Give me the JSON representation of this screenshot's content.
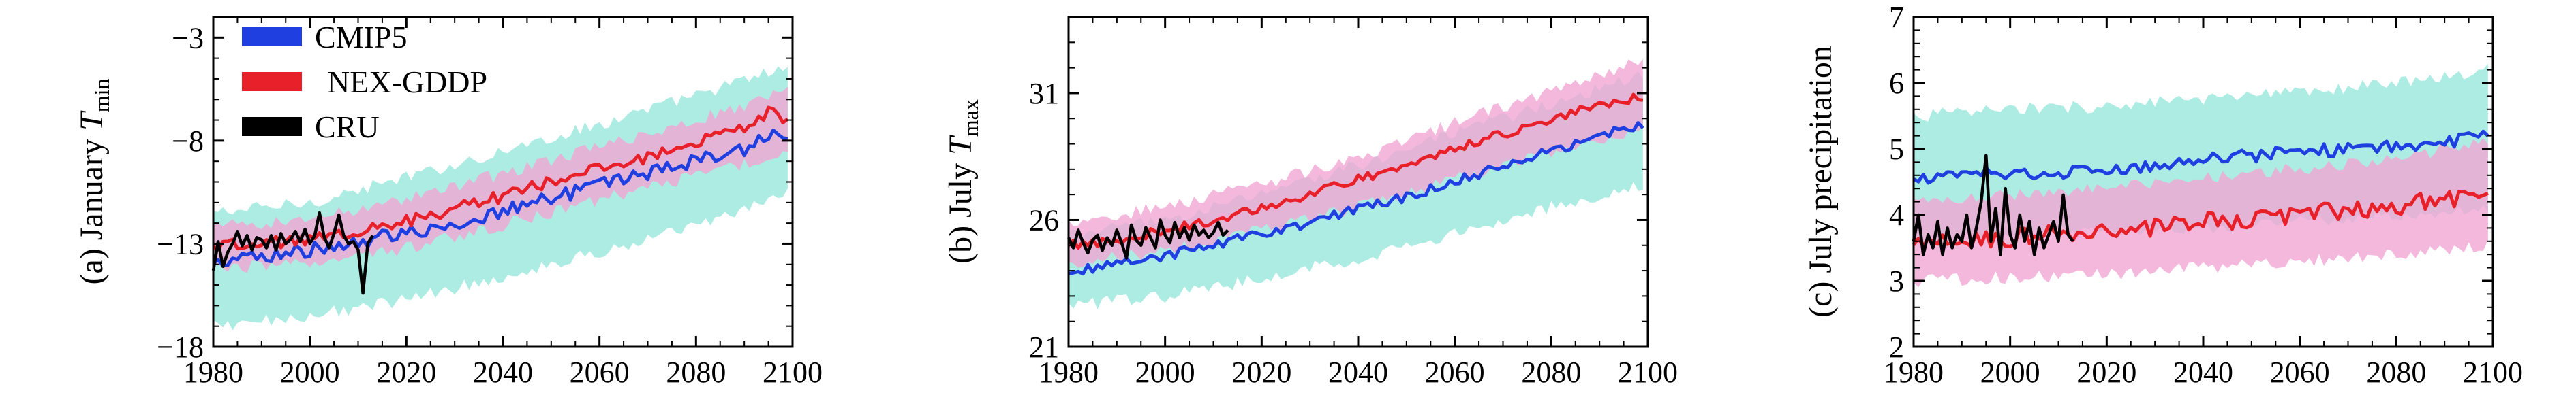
{
  "legend": [
    {
      "name": "CMIP5",
      "color": "#1f3fe0"
    },
    {
      "name": "NEX-GDDP",
      "color": "#e8202a"
    },
    {
      "name": "CRU",
      "color": "#000000"
    }
  ],
  "colors": {
    "cmip5_line": "#1f3fe0",
    "nex_line": "#e8202a",
    "cru_line": "#000000",
    "cmip5_band": "#9ee9dd",
    "nex_band": "#f3a6d5"
  },
  "chart_data": [
    {
      "type": "line",
      "panel": "a",
      "ylabel_prefix": "(a) January ",
      "ylabel_var": "T",
      "ylabel_sub": "min",
      "xlim": [
        1980,
        2100
      ],
      "ylim": [
        -18,
        -2
      ],
      "xticks": [
        1980,
        2000,
        2020,
        2040,
        2060,
        2080,
        2100
      ],
      "xtick_labels": [
        "1980",
        "2000",
        "2020",
        "2040",
        "2060",
        "2080",
        "2100"
      ],
      "yticks": [
        -18,
        -13,
        -8,
        -3
      ],
      "ytick_labels": [
        "−18",
        "−13",
        "−8",
        "−3"
      ],
      "show_legend": true,
      "series": [
        {
          "name": "CMIP5",
          "start": 1980,
          "end": 2099,
          "path": [
            [
              1980,
              -13.9
            ],
            [
              1990,
              -13.6
            ],
            [
              2000,
              -13.3
            ],
            [
              2010,
              -12.9
            ],
            [
              2020,
              -12.5
            ],
            [
              2030,
              -12.0
            ],
            [
              2040,
              -11.4
            ],
            [
              2050,
              -10.8
            ],
            [
              2060,
              -10.2
            ],
            [
              2070,
              -9.6
            ],
            [
              2080,
              -9.0
            ],
            [
              2090,
              -8.4
            ],
            [
              2096,
              -7.7
            ],
            [
              2099,
              -8.0
            ]
          ],
          "noise": 0.35,
          "band": {
            "lower": [
              [
                1980,
                -17.0
              ],
              [
                2000,
                -16.5
              ],
              [
                2020,
                -15.7
              ],
              [
                2040,
                -14.6
              ],
              [
                2060,
                -13.4
              ],
              [
                2080,
                -12.2
              ],
              [
                2099,
                -10.6
              ]
            ],
            "upper": [
              [
                1980,
                -11.5
              ],
              [
                2000,
                -11.0
              ],
              [
                2020,
                -9.8
              ],
              [
                2040,
                -8.5
              ],
              [
                2060,
                -7.2
              ],
              [
                2080,
                -5.8
              ],
              [
                2099,
                -4.4
              ]
            ]
          }
        },
        {
          "name": "NEX-GDDP",
          "start": 1980,
          "end": 2099,
          "path": [
            [
              1980,
              -13.1
            ],
            [
              1990,
              -13.0
            ],
            [
              2000,
              -12.8
            ],
            [
              2010,
              -12.4
            ],
            [
              2020,
              -11.9
            ],
            [
              2030,
              -11.3
            ],
            [
              2040,
              -10.7
            ],
            [
              2050,
              -10.0
            ],
            [
              2060,
              -9.4
            ],
            [
              2070,
              -8.8
            ],
            [
              2080,
              -8.1
            ],
            [
              2090,
              -7.4
            ],
            [
              2096,
              -6.5
            ],
            [
              2099,
              -7.0
            ]
          ],
          "noise": 0.3,
          "band": {
            "lower": [
              [
                1980,
                -14.2
              ],
              [
                2000,
                -14.0
              ],
              [
                2020,
                -13.2
              ],
              [
                2040,
                -12.1
              ],
              [
                2060,
                -10.9
              ],
              [
                2080,
                -9.7
              ],
              [
                2099,
                -8.6
              ]
            ],
            "upper": [
              [
                1980,
                -12.2
              ],
              [
                2000,
                -11.8
              ],
              [
                2020,
                -10.8
              ],
              [
                2040,
                -9.6
              ],
              [
                2060,
                -8.3
              ],
              [
                2080,
                -7.0
              ],
              [
                2099,
                -5.6
              ]
            ]
          }
        },
        {
          "name": "CRU",
          "start": 1980,
          "end": 2013,
          "values": [
            -14.3,
            -12.9,
            -14.1,
            -13.4,
            -13.0,
            -12.4,
            -13.1,
            -12.6,
            -13.3,
            -12.7,
            -12.8,
            -13.2,
            -12.6,
            -13.3,
            -12.5,
            -13.0,
            -12.8,
            -12.4,
            -12.9,
            -12.3,
            -13.0,
            -12.6,
            -11.5,
            -12.7,
            -13.2,
            -12.5,
            -11.6,
            -12.6,
            -13.0,
            -12.9,
            -13.3,
            -15.4,
            -13.0,
            -12.6
          ]
        }
      ]
    },
    {
      "type": "line",
      "panel": "b",
      "ylabel_prefix": "(b) July ",
      "ylabel_var": "T",
      "ylabel_sub": "max",
      "xlim": [
        1980,
        2100
      ],
      "ylim": [
        21,
        34
      ],
      "xticks": [
        1980,
        2000,
        2020,
        2040,
        2060,
        2080,
        2100
      ],
      "xtick_labels": [
        "1980",
        "2000",
        "2020",
        "2040",
        "2060",
        "2080",
        "2100"
      ],
      "yticks": [
        21,
        26,
        31
      ],
      "ytick_labels": [
        "21",
        "26",
        "31"
      ],
      "show_legend": false,
      "series": [
        {
          "name": "CMIP5",
          "start": 1980,
          "end": 2099,
          "path": [
            [
              1980,
              23.9
            ],
            [
              1990,
              24.3
            ],
            [
              2000,
              24.6
            ],
            [
              2010,
              25.0
            ],
            [
              2020,
              25.5
            ],
            [
              2030,
              25.9
            ],
            [
              2040,
              26.4
            ],
            [
              2050,
              26.9
            ],
            [
              2060,
              27.5
            ],
            [
              2070,
              28.1
            ],
            [
              2080,
              28.7
            ],
            [
              2090,
              29.3
            ],
            [
              2099,
              29.8
            ]
          ],
          "noise": 0.2,
          "band": {
            "lower": [
              [
                1980,
                22.6
              ],
              [
                2000,
                23.0
              ],
              [
                2020,
                23.7
              ],
              [
                2040,
                24.5
              ],
              [
                2060,
                25.4
              ],
              [
                2080,
                26.5
              ],
              [
                2099,
                27.4
              ]
            ],
            "upper": [
              [
                1980,
                25.4
              ],
              [
                2000,
                26.0
              ],
              [
                2020,
                27.0
              ],
              [
                2040,
                28.2
              ],
              [
                2060,
                29.4
              ],
              [
                2080,
                30.6
              ],
              [
                2099,
                31.7
              ]
            ]
          }
        },
        {
          "name": "NEX-GDDP",
          "start": 1980,
          "end": 2099,
          "path": [
            [
              1980,
              25.0
            ],
            [
              1990,
              25.2
            ],
            [
              2000,
              25.6
            ],
            [
              2010,
              26.0
            ],
            [
              2020,
              26.5
            ],
            [
              2030,
              27.0
            ],
            [
              2040,
              27.6
            ],
            [
              2050,
              28.2
            ],
            [
              2060,
              28.8
            ],
            [
              2070,
              29.4
            ],
            [
              2080,
              30.0
            ],
            [
              2090,
              30.5
            ],
            [
              2099,
              30.9
            ]
          ],
          "noise": 0.18,
          "band": {
            "lower": [
              [
                1980,
                24.3
              ],
              [
                2000,
                24.8
              ],
              [
                2020,
                25.6
              ],
              [
                2040,
                26.5
              ],
              [
                2060,
                27.6
              ],
              [
                2080,
                28.7
              ],
              [
                2099,
                29.6
              ]
            ],
            "upper": [
              [
                1980,
                25.9
              ],
              [
                2000,
                26.5
              ],
              [
                2020,
                27.4
              ],
              [
                2040,
                28.5
              ],
              [
                2060,
                29.8
              ],
              [
                2080,
                31.1
              ],
              [
                2099,
                32.3
              ]
            ]
          }
        },
        {
          "name": "CRU",
          "start": 1980,
          "end": 2013,
          "values": [
            25.3,
            24.9,
            25.6,
            25.1,
            24.7,
            25.2,
            25.4,
            24.8,
            25.3,
            25.0,
            25.6,
            25.1,
            24.5,
            25.8,
            25.2,
            25.0,
            25.7,
            25.3,
            24.9,
            26.0,
            25.4,
            25.1,
            25.9,
            25.3,
            25.7,
            25.2,
            25.8,
            25.4,
            25.6,
            25.3,
            25.5,
            25.9,
            25.4,
            25.6
          ]
        }
      ]
    },
    {
      "type": "line",
      "panel": "c",
      "ylabel_prefix": "(c) July precipitation",
      "ylabel_var": "",
      "ylabel_sub": "",
      "xlim": [
        1980,
        2100
      ],
      "ylim": [
        2,
        7
      ],
      "xticks": [
        1980,
        2000,
        2020,
        2040,
        2060,
        2080,
        2100
      ],
      "xtick_labels": [
        "1980",
        "2000",
        "2020",
        "2040",
        "2060",
        "2080",
        "2100"
      ],
      "yticks": [
        2,
        3,
        4,
        5,
        6,
        7
      ],
      "ytick_labels": [
        "2",
        "3",
        "4",
        "5",
        "6",
        "7"
      ],
      "show_legend": false,
      "series": [
        {
          "name": "CMIP5",
          "start": 1980,
          "end": 2099,
          "path": [
            [
              1980,
              4.55
            ],
            [
              1990,
              4.6
            ],
            [
              2000,
              4.65
            ],
            [
              2010,
              4.65
            ],
            [
              2020,
              4.7
            ],
            [
              2030,
              4.75
            ],
            [
              2040,
              4.85
            ],
            [
              2050,
              4.9
            ],
            [
              2060,
              4.95
            ],
            [
              2070,
              5.0
            ],
            [
              2080,
              5.05
            ],
            [
              2090,
              5.1
            ],
            [
              2099,
              5.2
            ]
          ],
          "noise": 0.1,
          "band": {
            "lower": [
              [
                1980,
                3.6
              ],
              [
                2000,
                3.7
              ],
              [
                2020,
                3.75
              ],
              [
                2040,
                3.8
              ],
              [
                2060,
                3.9
              ],
              [
                2080,
                4.0
              ],
              [
                2099,
                4.1
              ]
            ],
            "upper": [
              [
                1980,
                5.5
              ],
              [
                2000,
                5.6
              ],
              [
                2020,
                5.65
              ],
              [
                2040,
                5.75
              ],
              [
                2060,
                5.85
              ],
              [
                2080,
                6.0
              ],
              [
                2099,
                6.2
              ]
            ]
          }
        },
        {
          "name": "NEX-GDDP",
          "start": 1980,
          "end": 2099,
          "path": [
            [
              1980,
              3.55
            ],
            [
              1990,
              3.6
            ],
            [
              2000,
              3.65
            ],
            [
              2010,
              3.7
            ],
            [
              2020,
              3.75
            ],
            [
              2030,
              3.8
            ],
            [
              2040,
              3.9
            ],
            [
              2050,
              3.95
            ],
            [
              2060,
              4.0
            ],
            [
              2070,
              4.05
            ],
            [
              2080,
              4.15
            ],
            [
              2090,
              4.25
            ],
            [
              2099,
              4.35
            ]
          ],
          "noise": 0.15,
          "band": {
            "lower": [
              [
                1980,
                3.0
              ],
              [
                2000,
                3.05
              ],
              [
                2020,
                3.1
              ],
              [
                2040,
                3.2
              ],
              [
                2060,
                3.3
              ],
              [
                2080,
                3.4
              ],
              [
                2099,
                3.55
              ]
            ],
            "upper": [
              [
                1980,
                4.2
              ],
              [
                2000,
                4.3
              ],
              [
                2020,
                4.4
              ],
              [
                2040,
                4.55
              ],
              [
                2060,
                4.7
              ],
              [
                2080,
                4.85
              ],
              [
                2099,
                5.1
              ]
            ]
          }
        },
        {
          "name": "CRU",
          "start": 1980,
          "end": 2013,
          "values": [
            3.6,
            4.0,
            3.4,
            3.7,
            3.5,
            3.9,
            3.4,
            3.8,
            3.5,
            3.7,
            3.6,
            4.0,
            3.5,
            3.8,
            4.2,
            4.9,
            3.6,
            4.1,
            3.4,
            4.4,
            3.7,
            3.5,
            4.0,
            3.6,
            3.9,
            3.4,
            3.8,
            3.5,
            3.7,
            3.9,
            3.6,
            4.3,
            3.7,
            3.6
          ]
        }
      ]
    }
  ]
}
